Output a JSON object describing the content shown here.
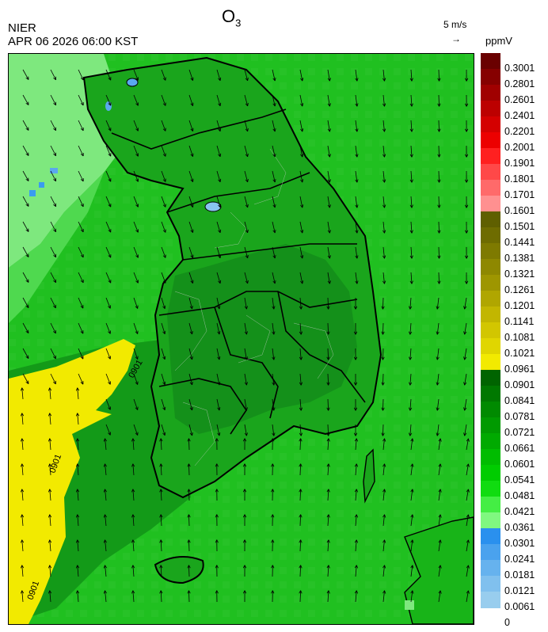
{
  "header": {
    "title_main": "O",
    "title_sub": "3",
    "organization": "NIER",
    "datetime": "APR 06 2026 06:00 KST",
    "vector_reference": "5 m/s",
    "unit": "ppmV"
  },
  "map": {
    "contour_labels": [
      "0901",
      "0901",
      "0901"
    ],
    "colors": {
      "sea_green": "#22c022",
      "land_green": "#1a9e1a",
      "dark_green": "#0f8a14",
      "light_green": "#7ee87e",
      "yellow": "#f2ea00",
      "blue": "#3a9cf0",
      "light_blue": "#88c4f0",
      "boundary": "#000000"
    }
  },
  "legend": {
    "labels": [
      "0.3001",
      "0.2801",
      "0.2601",
      "0.2401",
      "0.2201",
      "0.2001",
      "0.1901",
      "0.1801",
      "0.1701",
      "0.1601",
      "0.1501",
      "0.1441",
      "0.1381",
      "0.1321",
      "0.1261",
      "0.1201",
      "0.1141",
      "0.1081",
      "0.1021",
      "0.0961",
      "0.0901",
      "0.0841",
      "0.0781",
      "0.0721",
      "0.0661",
      "0.0601",
      "0.0541",
      "0.0481",
      "0.0421",
      "0.0361",
      "0.0301",
      "0.0241",
      "0.0181",
      "0.0121",
      "0.0061",
      "0"
    ],
    "colors": [
      "#6a0000",
      "#860000",
      "#a00000",
      "#bc0000",
      "#d40000",
      "#ec0000",
      "#ff2020",
      "#ff4848",
      "#ff6a6a",
      "#ff9090",
      "#5f5f00",
      "#6e6c00",
      "#7e7a00",
      "#8e8800",
      "#9e9600",
      "#b0a600",
      "#c2b600",
      "#d2c600",
      "#e0d600",
      "#f2ea00",
      "#006400",
      "#007800",
      "#008a00",
      "#009a00",
      "#00aa00",
      "#00bc00",
      "#00cc00",
      "#10dc10",
      "#44ee44",
      "#80f880",
      "#2a90ee",
      "#4aa2ee",
      "#66b2ee",
      "#80c0ee",
      "#98cdee"
    ]
  }
}
